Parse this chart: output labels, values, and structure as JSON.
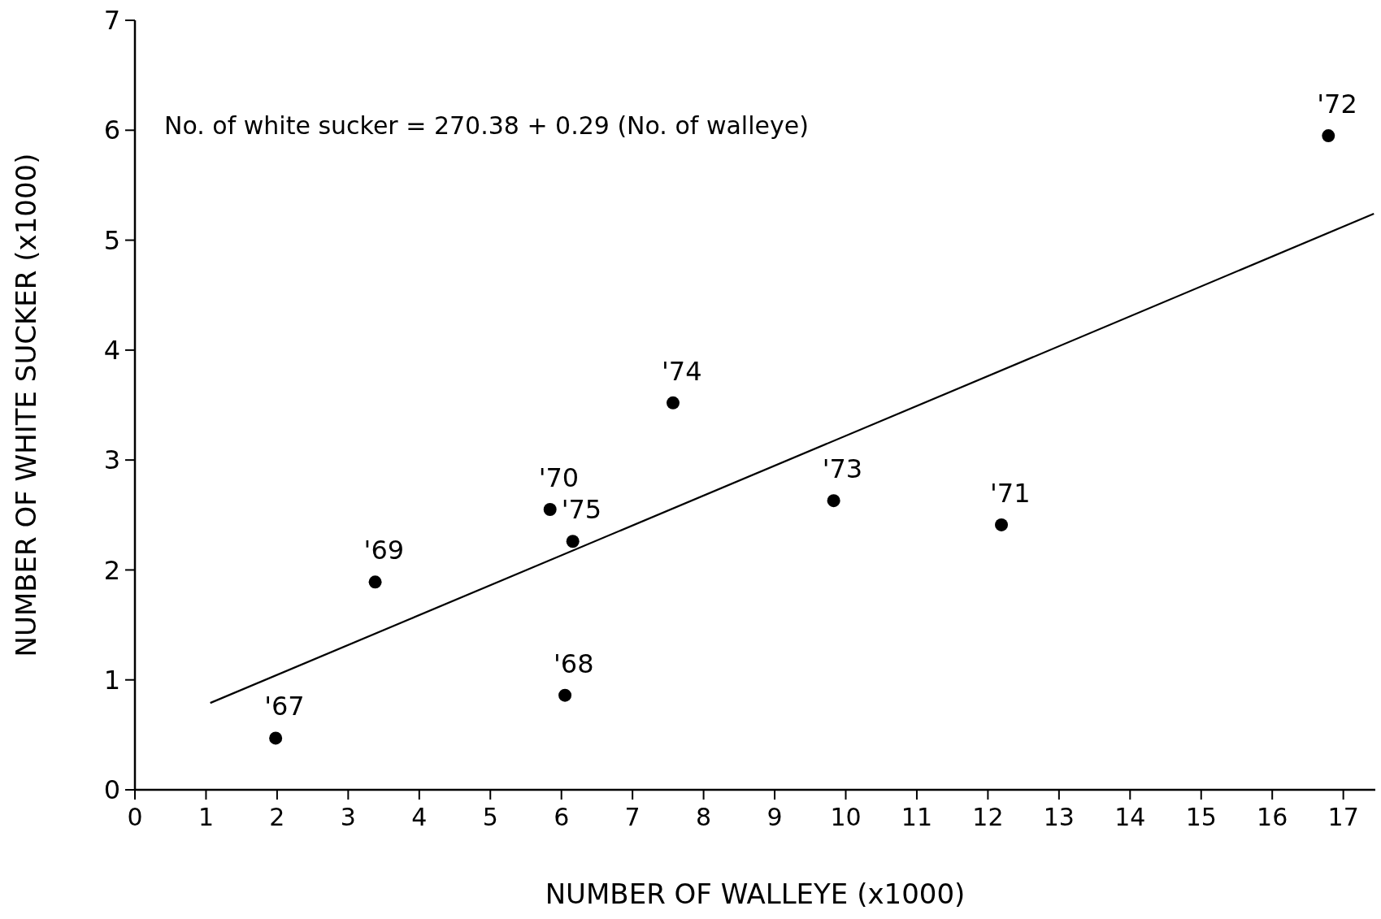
{
  "chart_data": {
    "type": "scatter",
    "xlabel": "NUMBER OF WALLEYE (x1000)",
    "ylabel": "NUMBER OF WHITE SUCKER (x1000)",
    "xlim": [
      0,
      17.45
    ],
    "ylim": [
      0,
      7
    ],
    "xticks": [
      0,
      1,
      2,
      3,
      4,
      5,
      6,
      7,
      8,
      9,
      10,
      11,
      12,
      13,
      14,
      15,
      16,
      17
    ],
    "yticks": [
      0,
      1,
      2,
      3,
      4,
      5,
      6,
      7
    ],
    "grid": false,
    "marker": "circle",
    "series": [
      {
        "color": "#000000",
        "x": [
          1.98,
          6.05,
          3.38,
          5.84,
          6.16,
          7.57,
          9.83,
          12.19,
          16.79
        ],
        "values": [
          0.47,
          0.86,
          1.89,
          2.55,
          2.26,
          3.52,
          2.63,
          2.41,
          5.95
        ]
      },
      {
        "type": "line",
        "color": "#000000",
        "x": [
          1.06,
          17.43
        ],
        "values": [
          0.79,
          5.24
        ],
        "marker": "none",
        "line_style": "solid"
      }
    ],
    "annotations": [
      "No. of white sucker = 270.38 + 0.29 (No. of walleye)",
      {
        "text": "'67",
        "x": 1.98,
        "y": 0.47
      },
      {
        "text": "'68",
        "x": 6.05,
        "y": 0.86
      },
      {
        "text": "'69",
        "x": 3.38,
        "y": 1.89
      },
      {
        "text": "'70",
        "x": 5.84,
        "y": 2.55
      },
      {
        "text": "'75",
        "x": 6.16,
        "y": 2.26
      },
      {
        "text": "'74",
        "x": 7.57,
        "y": 3.52
      },
      {
        "text": "'73",
        "x": 9.83,
        "y": 2.63
      },
      {
        "text": "'71",
        "x": 12.19,
        "y": 2.41
      },
      {
        "text": "'72",
        "x": 16.79,
        "y": 5.95
      }
    ]
  }
}
